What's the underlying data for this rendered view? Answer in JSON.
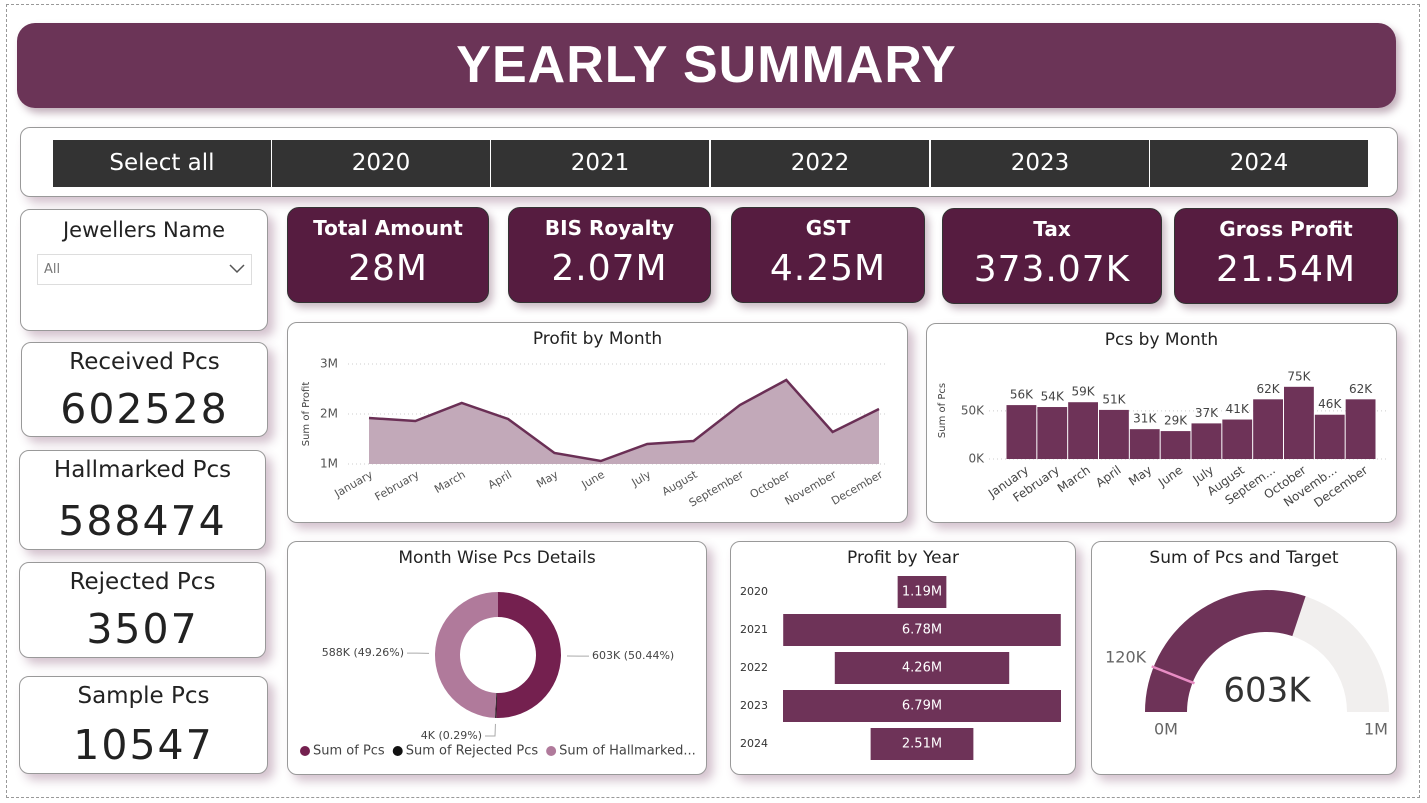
{
  "title": "YEARLY SUMMARY",
  "year_slicer": [
    "Select all",
    "2020",
    "2021",
    "2022",
    "2023",
    "2024"
  ],
  "jewellers_filter": {
    "label": "Jewellers Name",
    "value": "All"
  },
  "kpis": [
    {
      "label": "Total Amount",
      "value": "28M"
    },
    {
      "label": "BIS Royalty",
      "value": "2.07M"
    },
    {
      "label": "GST",
      "value": "4.25M"
    },
    {
      "label": "Tax",
      "value": "373.07K"
    },
    {
      "label": "Gross Profit",
      "value": "21.54M"
    }
  ],
  "pcs_cards": [
    {
      "label": "Received Pcs",
      "value": 602528
    },
    {
      "label": "Hallmarked Pcs",
      "value": 588474
    },
    {
      "label": "Rejected Pcs",
      "value": 3507
    },
    {
      "label": "Sample Pcs",
      "value": 10547
    }
  ],
  "chart_data": [
    {
      "type": "area",
      "title": "Profit by Month",
      "y_label": "Sum of Profit",
      "categories": [
        "January",
        "February",
        "March",
        "April",
        "May",
        "June",
        "July",
        "August",
        "September",
        "October",
        "November",
        "December"
      ],
      "values": [
        1920000,
        1860000,
        2220000,
        1900000,
        1220000,
        1060000,
        1400000,
        1460000,
        2180000,
        2680000,
        1640000,
        2100000
      ],
      "color": "#6a2f55",
      "fill": "#c2a9b9",
      "ylim": [
        1000000,
        3000000
      ],
      "yticks": [
        {
          "value": 1000000,
          "label": "1M"
        },
        {
          "value": 2000000,
          "label": "2M"
        },
        {
          "value": 3000000,
          "label": "3M"
        }
      ],
      "grid": true
    },
    {
      "type": "bar",
      "title": "Pcs by Month",
      "y_label": "Sum of Pcs",
      "categories": [
        "January",
        "February",
        "March",
        "April",
        "May",
        "June",
        "July",
        "August",
        "Septem...",
        "October",
        "Novemb...",
        "December"
      ],
      "values": [
        56000,
        54000,
        59000,
        51000,
        31000,
        29000,
        37000,
        41000,
        62000,
        75000,
        46000,
        62000
      ],
      "value_labels": [
        "56K",
        "54K",
        "59K",
        "51K",
        "31K",
        "29K",
        "37K",
        "41K",
        "62K",
        "75K",
        "46K",
        "62K"
      ],
      "color": "#6e3358",
      "ylim": [
        0,
        80000
      ],
      "yticks": [
        {
          "value": 0,
          "label": "0K"
        },
        {
          "value": 50000,
          "label": "50K"
        }
      ],
      "grid": true
    },
    {
      "type": "donut",
      "title": "Month Wise Pcs Details",
      "labels": [
        "Sum of Pcs",
        "Sum of Rejected Pcs",
        "Sum of Hallmarked..."
      ],
      "values": [
        602528,
        3507,
        588474
      ],
      "value_labels": [
        "603K (50.44%)",
        "4K (0.29%)",
        "588K (49.26%)"
      ],
      "colors": [
        "#74204f",
        "#111111",
        "#b07a9b"
      ]
    },
    {
      "type": "funnel",
      "title": "Profit by Year",
      "categories": [
        "2020",
        "2021",
        "2022",
        "2023",
        "2024"
      ],
      "values": [
        1190000,
        6780000,
        4260000,
        6790000,
        2510000
      ],
      "value_labels": [
        "1.19M",
        "6.78M",
        "4.26M",
        "6.79M",
        "2.51M"
      ],
      "color": "#6e3358"
    },
    {
      "type": "gauge",
      "title": "Sum of Pcs and Target",
      "value": 602528,
      "value_label": "603K",
      "min": {
        "value": 0,
        "label": "0M"
      },
      "max": {
        "value": 1000000,
        "label": "1M"
      },
      "target": {
        "value": 120000,
        "label": "120K"
      },
      "color": "#6e3358",
      "track_color": "#f1efee",
      "target_color": "#e88cc4"
    }
  ]
}
